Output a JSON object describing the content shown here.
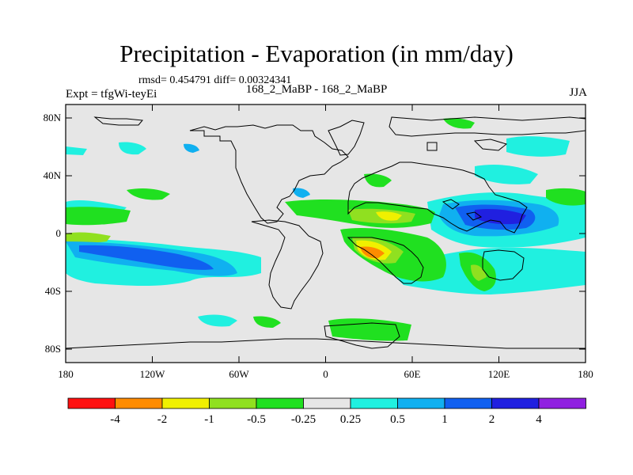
{
  "header": {
    "title": "Precipitation - Evaporation (in mm/day)",
    "stats": "rmsd= 0.454791 diff= 0.00324341",
    "experiment": "Expt = tfgWi-teyEi",
    "comparison": "168_2_MaBP - 168_2_MaBP",
    "season": "JJA"
  },
  "axes": {
    "y_ticks": [
      "80N",
      "40N",
      "0",
      "40S",
      "80S"
    ],
    "x_ticks": [
      "180",
      "120W",
      "60W",
      "0",
      "60E",
      "120E",
      "180"
    ]
  },
  "legend": {
    "labels": [
      "-4",
      "-2",
      "-1",
      "-0.5",
      "-0.25",
      "0.25",
      "0.5",
      "1",
      "2",
      "4"
    ],
    "colors": [
      "#ff1010",
      "#ff8c00",
      "#f0f000",
      "#90e020",
      "#20e020",
      "#e6e6e6",
      "#20f0e0",
      "#10b0f0",
      "#1060f0",
      "#2020e0",
      "#9020e0"
    ]
  },
  "palette": {
    "background": "#e6e6e6",
    "coast": "#000000"
  }
}
